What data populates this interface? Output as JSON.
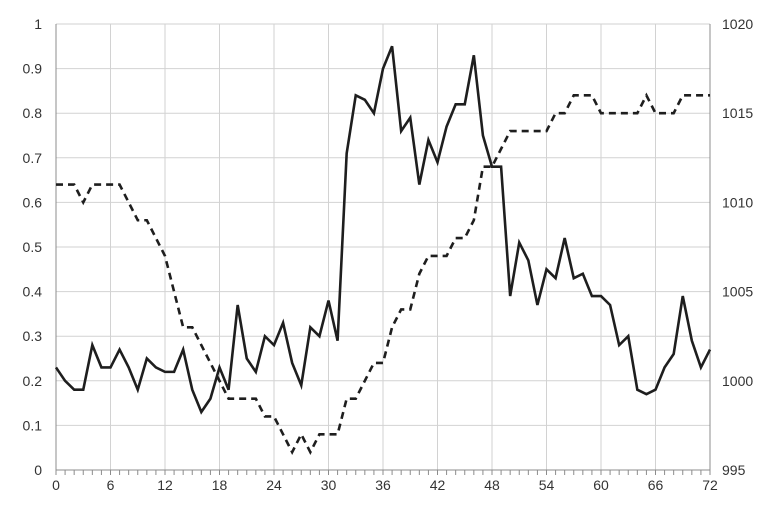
{
  "chart_data": {
    "type": "line",
    "title": "",
    "xlabel": "",
    "ylabel": "",
    "y2label": "",
    "grid": true,
    "legend": "none",
    "xlim": [
      0,
      72
    ],
    "x_ticks": [
      0,
      6,
      12,
      18,
      24,
      30,
      36,
      42,
      48,
      54,
      60,
      66,
      72
    ],
    "ylim": [
      0,
      1
    ],
    "y_ticks": [
      "0",
      "0.1",
      "0.2",
      "0.3",
      "0.4",
      "0.5",
      "0.6",
      "0.7",
      "0.8",
      "0.9",
      "1"
    ],
    "y2lim": [
      995,
      1020
    ],
    "y2_ticks": [
      "995",
      "1000",
      "1005",
      "1010",
      "1015",
      "1020"
    ],
    "series": [
      {
        "axis": "left",
        "style": "solid",
        "color": "#1e1e1e",
        "x": [
          0,
          1,
          2,
          3,
          4,
          5,
          6,
          7,
          8,
          9,
          10,
          11,
          12,
          13,
          14,
          15,
          16,
          17,
          18,
          19,
          20,
          21,
          22,
          23,
          24,
          25,
          26,
          27,
          28,
          29,
          30,
          31,
          32,
          33,
          34,
          35,
          36,
          37,
          38,
          39,
          40,
          41,
          42,
          43,
          44,
          45,
          46,
          47,
          48,
          49,
          50,
          51,
          52,
          53,
          54,
          55,
          56,
          57,
          58,
          59,
          60,
          61,
          62,
          63,
          64,
          65,
          66,
          67,
          68,
          69,
          70,
          71,
          72
        ],
        "values": [
          0.23,
          0.2,
          0.18,
          0.18,
          0.28,
          0.23,
          0.23,
          0.27,
          0.23,
          0.18,
          0.25,
          0.23,
          0.22,
          0.22,
          0.27,
          0.18,
          0.13,
          0.16,
          0.23,
          0.18,
          0.37,
          0.25,
          0.22,
          0.3,
          0.28,
          0.33,
          0.24,
          0.19,
          0.32,
          0.3,
          0.38,
          0.29,
          0.71,
          0.84,
          0.83,
          0.8,
          0.9,
          0.95,
          0.76,
          0.79,
          0.64,
          0.74,
          0.69,
          0.77,
          0.82,
          0.82,
          0.93,
          0.75,
          0.68,
          0.68,
          0.39,
          0.51,
          0.47,
          0.37,
          0.45,
          0.43,
          0.52,
          0.43,
          0.44,
          0.39,
          0.39,
          0.37,
          0.28,
          0.3,
          0.18,
          0.17,
          0.18,
          0.23,
          0.26,
          0.39,
          0.29,
          0.23,
          0.27
        ]
      },
      {
        "axis": "right",
        "style": "dashed",
        "color": "#1e1e1e",
        "x": [
          0,
          1,
          2,
          3,
          4,
          5,
          6,
          7,
          8,
          9,
          10,
          11,
          12,
          13,
          14,
          15,
          16,
          17,
          18,
          19,
          20,
          21,
          22,
          23,
          24,
          25,
          26,
          27,
          28,
          29,
          30,
          31,
          32,
          33,
          34,
          35,
          36,
          37,
          38,
          39,
          40,
          41,
          42,
          43,
          44,
          45,
          46,
          47,
          48,
          49,
          50,
          51,
          52,
          53,
          54,
          55,
          56,
          57,
          58,
          59,
          60,
          61,
          62,
          63,
          64,
          65,
          66,
          67,
          68,
          69,
          70,
          71,
          72
        ],
        "values": [
          1011,
          1011,
          1011,
          1010,
          1011,
          1011,
          1011,
          1011,
          1010,
          1009,
          1009,
          1008,
          1007,
          1005,
          1003,
          1003,
          1002,
          1001,
          1000,
          999,
          999,
          999,
          999,
          998,
          998,
          997,
          996,
          997,
          996,
          997,
          997,
          997,
          999,
          999,
          1000,
          1001,
          1001,
          1003,
          1004,
          1004,
          1006,
          1007,
          1007,
          1007,
          1008,
          1008,
          1009,
          1012,
          1012,
          1013,
          1014,
          1014,
          1014,
          1014,
          1014,
          1015,
          1015,
          1016,
          1016,
          1016,
          1015,
          1015,
          1015,
          1015,
          1015,
          1016,
          1015,
          1015,
          1015,
          1016,
          1016,
          1016,
          1016
        ]
      }
    ]
  }
}
